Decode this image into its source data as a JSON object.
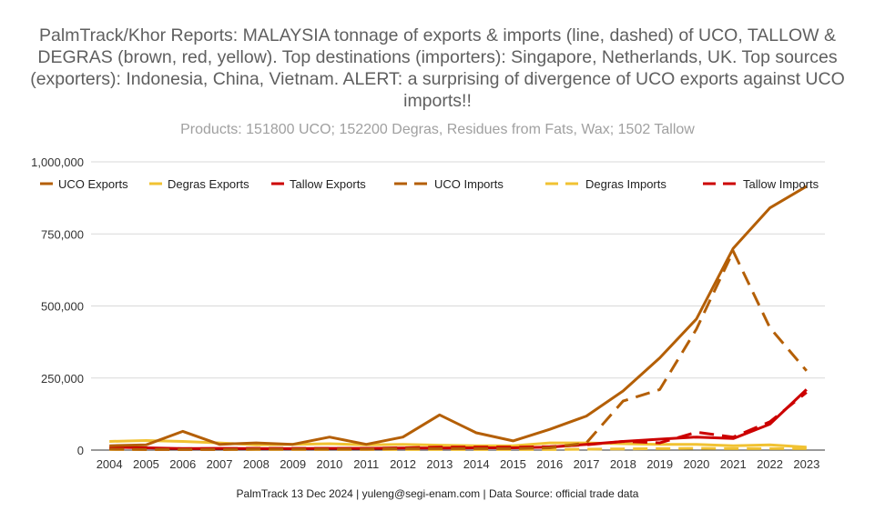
{
  "chart_data": {
    "type": "line",
    "title": "PalmTrack/Khor Reports: MALAYSIA tonnage of exports & imports (line, dashed) of UCO, TALLOW & DEGRAS (brown, red, yellow). Top destinations (importers): Singapore, Netherlands, UK. Top sources (exporters): Indonesia, China, Vietnam. ALERT: a surprising of divergence of UCO exports against UCO imports!!",
    "subtitle": "Products: 151800 UCO; 152200 Degras, Residues from Fats, Wax; 1502 Tallow",
    "xlabel": "",
    "ylabel": "",
    "ylim": [
      0,
      1000000
    ],
    "yticks": [
      0,
      250000,
      500000,
      750000,
      1000000
    ],
    "ytick_labels": [
      "0",
      "250,000",
      "500,000",
      "750,000",
      "1,000,000"
    ],
    "categories": [
      "2004",
      "2005",
      "2006",
      "2007",
      "2008",
      "2009",
      "2010",
      "2011",
      "2012",
      "2013",
      "2014",
      "2015",
      "2016",
      "2017",
      "2018",
      "2019",
      "2020",
      "2021",
      "2022",
      "2023"
    ],
    "legend_position": "top",
    "series": [
      {
        "name": "UCO Exports",
        "color": "#b45f06",
        "dashed": false,
        "values": [
          15000,
          18000,
          65000,
          20000,
          25000,
          20000,
          45000,
          20000,
          45000,
          122000,
          60000,
          32000,
          72000,
          118000,
          205000,
          320000,
          455000,
          700000,
          840000,
          915000
        ]
      },
      {
        "name": "Degras Exports",
        "color": "#f1c232",
        "dashed": false,
        "values": [
          30000,
          33000,
          30000,
          25000,
          18000,
          20000,
          22000,
          18000,
          20000,
          17000,
          15000,
          15000,
          25000,
          25000,
          22000,
          20000,
          20000,
          15000,
          18000,
          10000
        ]
      },
      {
        "name": "Tallow Exports",
        "color": "#cc0000",
        "dashed": false,
        "values": [
          10000,
          8000,
          5000,
          6000,
          5000,
          5000,
          6000,
          6000,
          7000,
          7000,
          8000,
          8000,
          10000,
          20000,
          30000,
          38000,
          45000,
          40000,
          90000,
          210000
        ]
      },
      {
        "name": "UCO Imports",
        "color": "#b45f06",
        "dashed": true,
        "values": [
          3000,
          2000,
          2000,
          2000,
          3000,
          3000,
          3000,
          3000,
          5000,
          5000,
          5000,
          5000,
          8000,
          25000,
          170000,
          210000,
          420000,
          690000,
          425000,
          275000
        ]
      },
      {
        "name": "Degras Imports",
        "color": "#f1c232",
        "dashed": true,
        "values": [
          2000,
          2000,
          2000,
          2000,
          2000,
          2000,
          2000,
          2000,
          2000,
          2000,
          2000,
          2000,
          2000,
          3000,
          4000,
          5000,
          6000,
          5000,
          5000,
          5000
        ]
      },
      {
        "name": "Tallow Imports",
        "color": "#cc0000",
        "dashed": true,
        "values": [
          5000,
          5000,
          5000,
          5000,
          6000,
          6000,
          6000,
          6000,
          8000,
          10000,
          10000,
          10000,
          12000,
          18000,
          30000,
          25000,
          62000,
          45000,
          98000,
          200000
        ]
      }
    ]
  },
  "footer": "PalmTrack 13 Dec 2024  | yuleng@segi-enam.com | Data Source: official trade data"
}
